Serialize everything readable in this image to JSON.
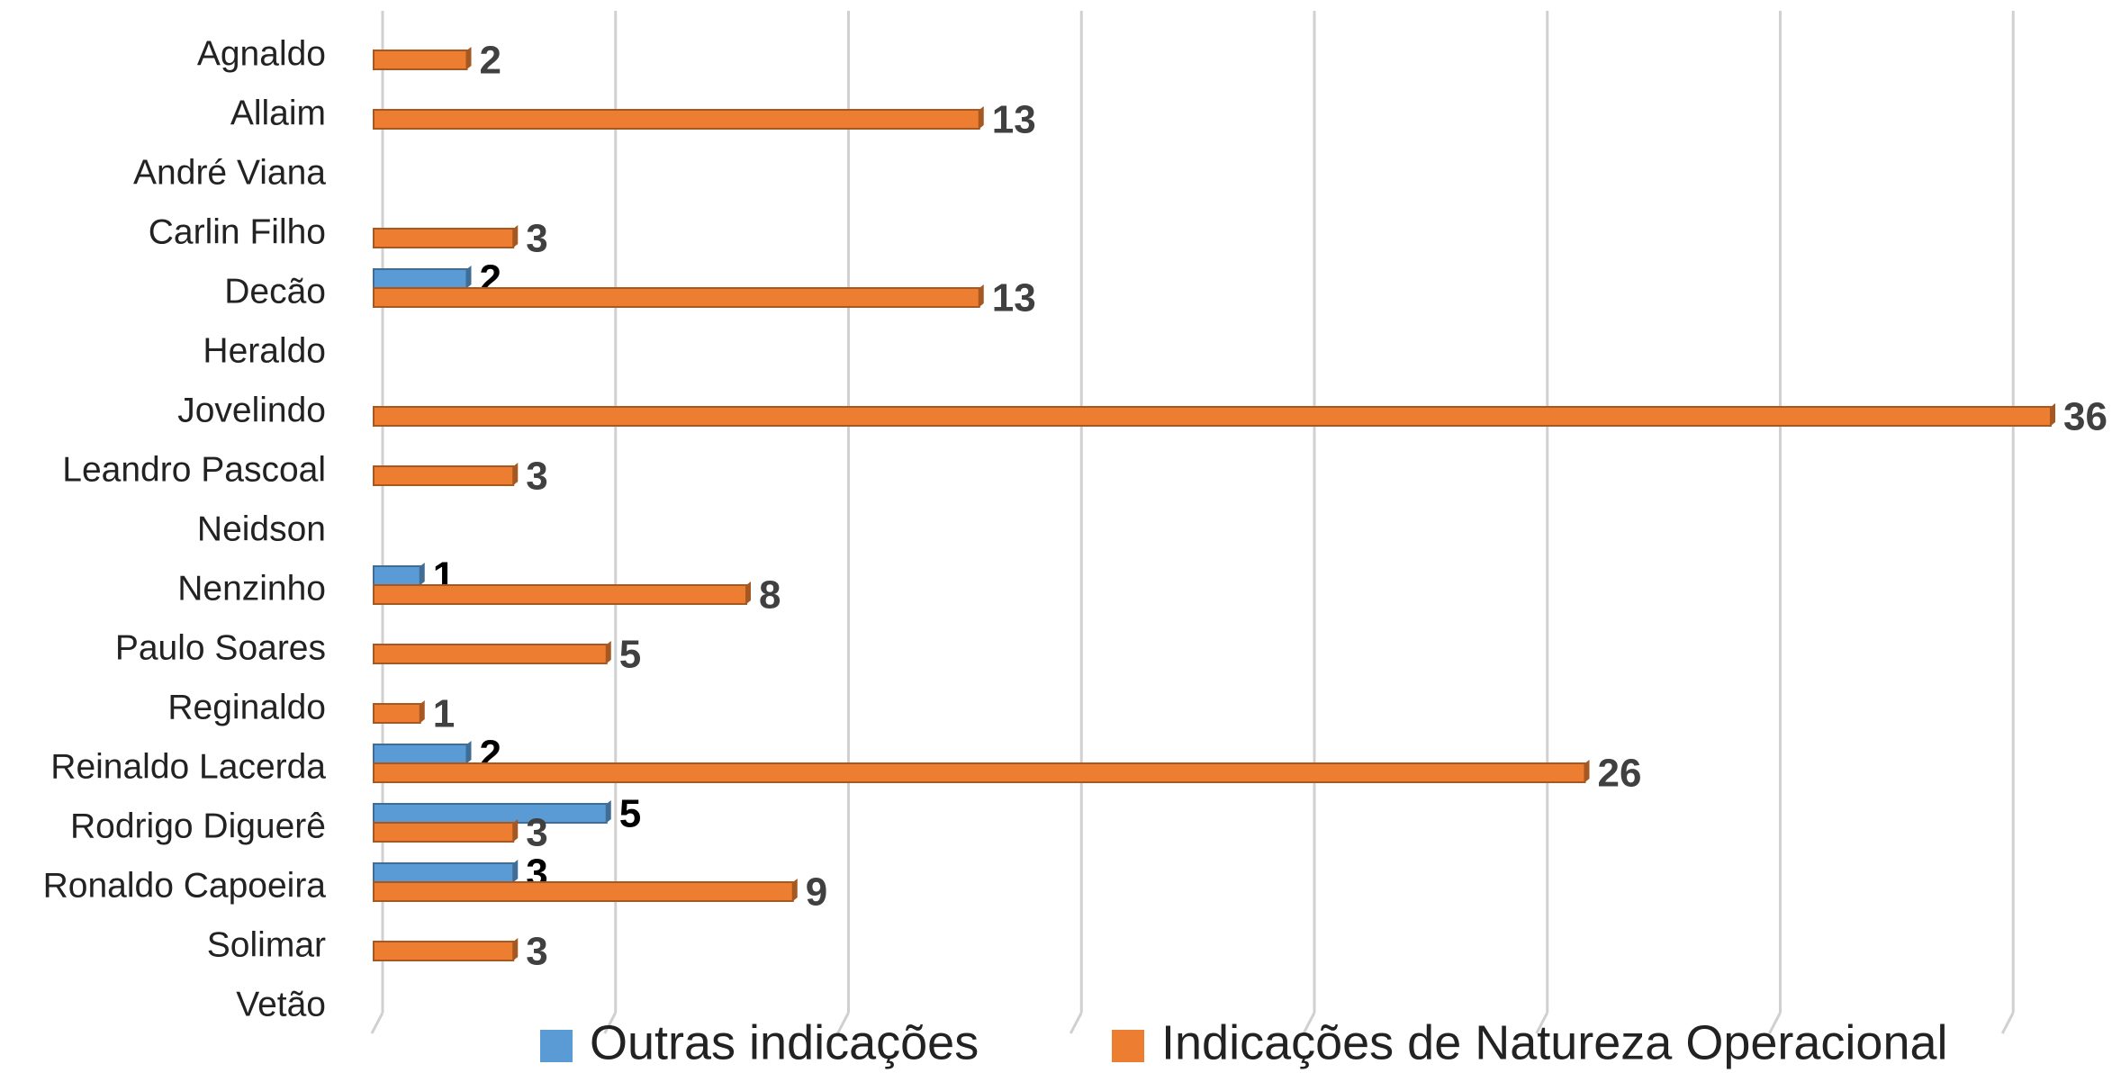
{
  "chart_data": {
    "type": "hbar",
    "categories": [
      "Agnaldo",
      "Allaim",
      "André Viana",
      "Carlin Filho",
      "Decão",
      "Heraldo",
      "Jovelindo",
      "Leandro Pascoal",
      "Neidson",
      "Nenzinho",
      "Paulo Soares",
      "Reginaldo",
      "Reinaldo Lacerda",
      "Rodrigo Diguerê",
      "Ronaldo Capoeira",
      "Solimar",
      "Vetão"
    ],
    "series": [
      {
        "name": "Outras indicações",
        "color": "#5b9bd5",
        "values": [
          null,
          null,
          null,
          null,
          2,
          null,
          null,
          null,
          null,
          1,
          null,
          null,
          2,
          5,
          3,
          null,
          null
        ]
      },
      {
        "name": "Indicações de Natureza Operacional",
        "color": "#ed7d31",
        "values": [
          2,
          13,
          null,
          3,
          13,
          null,
          36,
          3,
          null,
          8,
          5,
          1,
          26,
          3,
          9,
          3,
          null
        ]
      }
    ],
    "xlim": [
      0,
      36
    ],
    "xticks": [
      0,
      5,
      10,
      15,
      20,
      25,
      30,
      35
    ],
    "grid": true,
    "legend": "bottom"
  }
}
